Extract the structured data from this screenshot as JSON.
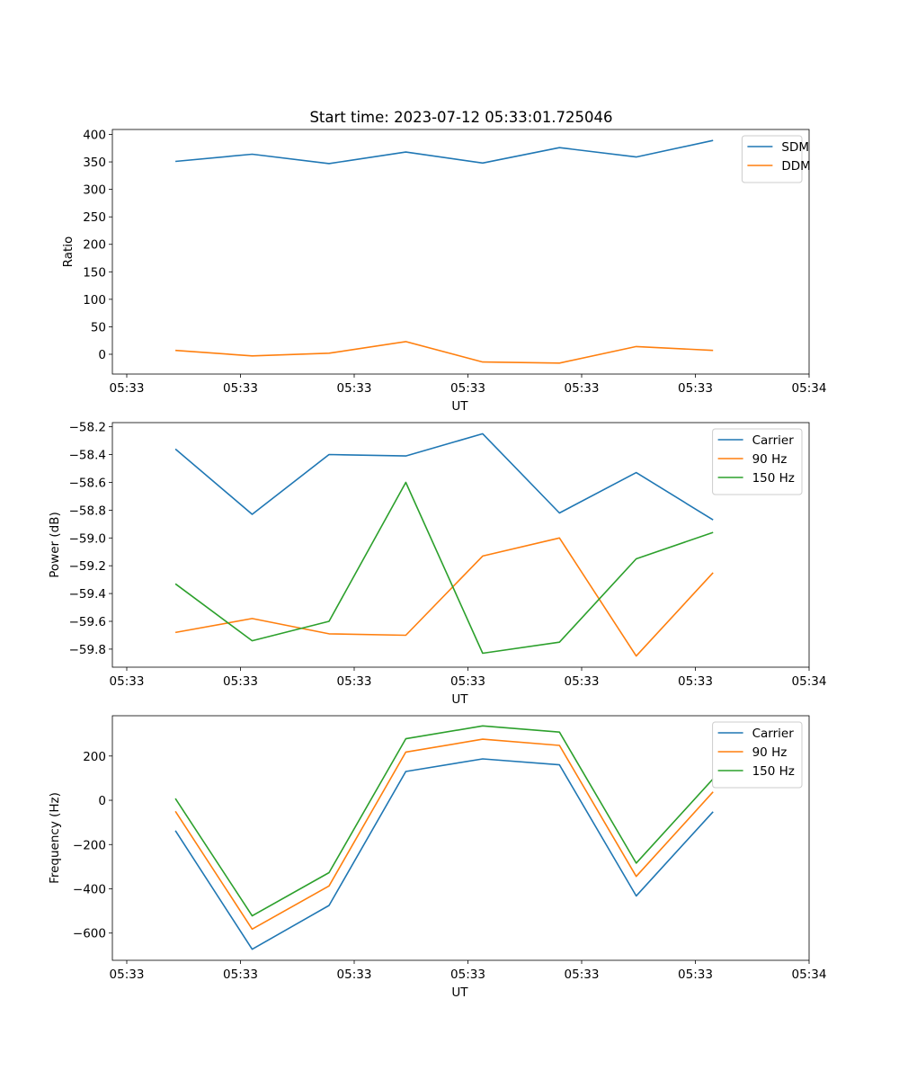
{
  "title": "Start time: 2023-07-12 05:33:01.725046",
  "chart_data": [
    {
      "type": "line",
      "title": "Start time: 2023-07-12 05:33:01.725046",
      "xlabel": "UT",
      "ylabel": "Ratio",
      "x_tick_labels": [
        "05:33",
        "05:33",
        "05:33",
        "05:33",
        "05:33",
        "05:33",
        "05:34"
      ],
      "x": [
        1,
        2,
        3,
        4,
        5,
        6,
        7,
        8
      ],
      "xlim": [
        0.18,
        9.25
      ],
      "ylim": [
        -36,
        409
      ],
      "y_ticks": [
        0,
        50,
        100,
        150,
        200,
        250,
        300,
        350,
        400
      ],
      "legend": "top-right",
      "series": [
        {
          "name": "SDM",
          "color": "#1f77b4",
          "values": [
            351,
            364,
            347,
            368,
            348,
            376,
            359,
            389
          ]
        },
        {
          "name": "DDM",
          "color": "#ff7f0e",
          "values": [
            7,
            -3,
            2,
            23,
            -14,
            -16,
            14,
            7
          ]
        }
      ]
    },
    {
      "type": "line",
      "xlabel": "UT",
      "ylabel": "Power (dB)",
      "x_tick_labels": [
        "05:33",
        "05:33",
        "05:33",
        "05:33",
        "05:33",
        "05:33",
        "05:34"
      ],
      "x": [
        1,
        2,
        3,
        4,
        5,
        6,
        7,
        8
      ],
      "xlim": [
        0.18,
        9.25
      ],
      "ylim": [
        -59.93,
        -58.17
      ],
      "y_ticks": [
        -59.8,
        -59.6,
        -59.4,
        -59.2,
        -59.0,
        -58.8,
        -58.6,
        -58.4,
        -58.2
      ],
      "y_tick_labels": [
        "−59.8",
        "−59.6",
        "−59.4",
        "−59.2",
        "−59.0",
        "−58.8",
        "−58.6",
        "−58.4",
        "−58.2"
      ],
      "legend": "top-right",
      "series": [
        {
          "name": "Carrier",
          "color": "#1f77b4",
          "values": [
            -58.36,
            -58.83,
            -58.4,
            -58.41,
            -58.25,
            -58.82,
            -58.53,
            -58.87
          ]
        },
        {
          "name": "90 Hz",
          "color": "#ff7f0e",
          "values": [
            -59.68,
            -59.58,
            -59.69,
            -59.7,
            -59.13,
            -59.0,
            -59.85,
            -59.25
          ]
        },
        {
          "name": "150 Hz",
          "color": "#2ca02c",
          "values": [
            -59.33,
            -59.74,
            -59.6,
            -58.6,
            -59.83,
            -59.75,
            -59.15,
            -58.96
          ]
        }
      ]
    },
    {
      "type": "line",
      "xlabel": "UT",
      "ylabel": "Frequency (Hz)",
      "x_tick_labels": [
        "05:33",
        "05:33",
        "05:33",
        "05:33",
        "05:33",
        "05:33",
        "05:34"
      ],
      "x": [
        1,
        2,
        3,
        4,
        5,
        6,
        7,
        8
      ],
      "xlim": [
        0.18,
        9.25
      ],
      "ylim": [
        -723,
        382
      ],
      "y_ticks": [
        -600,
        -400,
        -200,
        0,
        200
      ],
      "y_tick_labels": [
        "−600",
        "−400",
        "−200",
        "0",
        "200"
      ],
      "legend": "top-right",
      "series": [
        {
          "name": "Carrier",
          "color": "#1f77b4",
          "values": [
            -137,
            -673,
            -475,
            130,
            187,
            160,
            -432,
            -52
          ]
        },
        {
          "name": "90 Hz",
          "color": "#ff7f0e",
          "values": [
            -50,
            -582,
            -387,
            218,
            276,
            248,
            -344,
            38
          ]
        },
        {
          "name": "150 Hz",
          "color": "#2ca02c",
          "values": [
            8,
            -522,
            -327,
            278,
            336,
            308,
            -284,
            97
          ]
        }
      ]
    }
  ]
}
